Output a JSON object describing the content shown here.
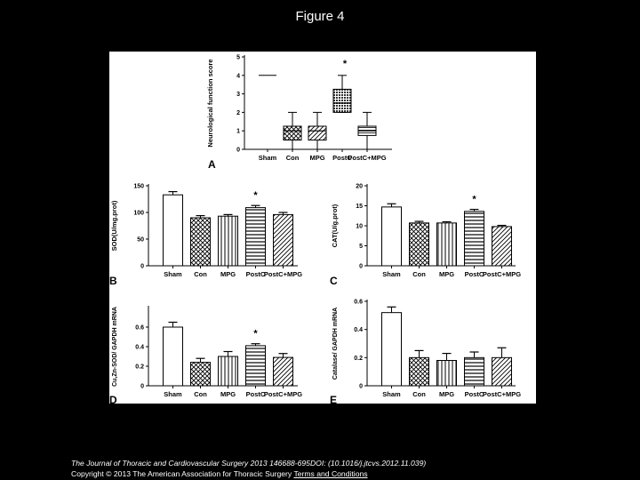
{
  "slide_title": "Figure 4",
  "caption": {
    "journal": "The Journal of Thoracic and Cardiovascular Surgery 2013 146688-695DOI: (10.1016/j.jtcvs.2012.11.039)",
    "copyright": "Copyright © 2013 The American Association for Thoracic Surgery",
    "terms_link": "Terms and Conditions"
  },
  "colors": {
    "background": "#000000",
    "figure_bg": "#ffffff",
    "ink": "#000000"
  },
  "chart_data": [
    {
      "panel": "A",
      "type": "box",
      "ylabel": "Neurological function score",
      "categories": [
        "Sham",
        "Con",
        "MPG",
        "PostC",
        "PostC+MPG"
      ],
      "ylim": [
        0,
        5
      ],
      "yticks": [
        0,
        1,
        2,
        3,
        4,
        5
      ],
      "patterns": [
        "none",
        "cross",
        "hatch",
        "dots",
        "lines"
      ],
      "boxes": [
        {
          "min": 4,
          "q1": 4,
          "median": 4,
          "q3": 4,
          "max": 4
        },
        {
          "min": 0,
          "q1": 0.5,
          "median": 1,
          "q3": 1.25,
          "max": 2
        },
        {
          "min": 0,
          "q1": 0.5,
          "median": 1,
          "q3": 1.25,
          "max": 2
        },
        {
          "min": 2,
          "q1": 2,
          "median": 2.5,
          "q3": 3.25,
          "max": 4
        },
        {
          "min": 0,
          "q1": 0.75,
          "median": 1,
          "q3": 1.25,
          "max": 2
        }
      ],
      "annotations": [
        {
          "index": 3,
          "text": "*"
        }
      ]
    },
    {
      "panel": "B",
      "type": "bar",
      "ylabel": "SOD(U/mg.prot)",
      "categories": [
        "Sham",
        "Con",
        "MPG",
        "PostC",
        "PostC+MPG"
      ],
      "values": [
        133,
        90,
        93,
        109,
        96
      ],
      "errors": [
        6,
        4,
        3,
        4,
        4
      ],
      "ylim": [
        0,
        150
      ],
      "yticks": [
        0,
        50,
        100,
        150
      ],
      "patterns": [
        "none",
        "cross",
        "vlines",
        "hlines",
        "hatch"
      ],
      "annotations": [
        {
          "index": 3,
          "text": "*"
        }
      ]
    },
    {
      "panel": "C",
      "type": "bar",
      "ylabel": "CAT(U/g.prot)",
      "categories": [
        "Sham",
        "Con",
        "MPG",
        "PostC",
        "PostC+MPG"
      ],
      "values": [
        14.7,
        10.7,
        10.7,
        13.6,
        9.8
      ],
      "errors": [
        0.8,
        0.4,
        0.3,
        0.5,
        0.3
      ],
      "ylim": [
        0,
        20
      ],
      "yticks": [
        0,
        5,
        10,
        15,
        20
      ],
      "patterns": [
        "none",
        "cross",
        "vlines",
        "hlines",
        "hatch"
      ],
      "annotations": [
        {
          "index": 3,
          "text": "*"
        }
      ]
    },
    {
      "panel": "D",
      "type": "bar",
      "ylabel": "Cu,Zn-SOD/ GAPDH mRNA",
      "categories": [
        "Sham",
        "Con",
        "MPG",
        "PostC",
        "PostC+MPG"
      ],
      "values": [
        0.6,
        0.24,
        0.3,
        0.41,
        0.29
      ],
      "errors": [
        0.05,
        0.04,
        0.05,
        0.02,
        0.04
      ],
      "ylim": [
        0,
        0.8
      ],
      "yticks": [
        0,
        0.2,
        0.4,
        0.6
      ],
      "patterns": [
        "none",
        "cross",
        "vlines",
        "hlines",
        "hatch"
      ],
      "annotations": [
        {
          "index": 3,
          "text": "*"
        }
      ]
    },
    {
      "panel": "E",
      "type": "bar",
      "ylabel": "Catalase/ GAPDH mRNA",
      "categories": [
        "Sham",
        "Con",
        "MPG",
        "PostC",
        "PostC+MPG"
      ],
      "values": [
        0.52,
        0.2,
        0.18,
        0.2,
        0.2
      ],
      "errors": [
        0.04,
        0.05,
        0.05,
        0.04,
        0.07
      ],
      "ylim": [
        0,
        0.6
      ],
      "yticks": [
        0,
        0.2,
        0.4,
        0.6
      ],
      "patterns": [
        "none",
        "cross",
        "vlines",
        "hlines",
        "hatch"
      ],
      "annotations": []
    }
  ]
}
